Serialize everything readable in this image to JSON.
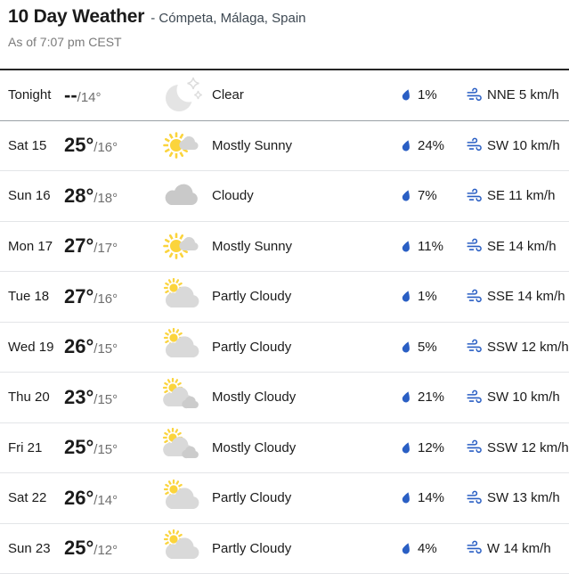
{
  "header": {
    "title": "10 Day Weather",
    "location": "- Cómpeta, Málaga, Spain",
    "as_of": "As of 7:07 pm CEST"
  },
  "colors": {
    "accent_blue": "#2a5fc4",
    "sun_yellow": "#fbd43c",
    "cloud_gray": "#d9d9d9",
    "moon_gray": "#e4e4e4",
    "text_dark": "#1b1b1b",
    "text_muted": "#7a7a7a"
  },
  "icons": {
    "precip": "raindrop-icon",
    "wind": "wind-gust-icon"
  },
  "table": {
    "rows": [
      {
        "day": "Tonight",
        "high": "--",
        "low": "/14°",
        "icon": "clear-night-icon",
        "condition": "Clear",
        "precip": "1%",
        "wind": "NNE 5 km/h"
      },
      {
        "day": "Sat 15",
        "high": "25°",
        "low": "/16°",
        "icon": "mostly-sunny-icon",
        "condition": "Mostly Sunny",
        "precip": "24%",
        "wind": "SW 10 km/h"
      },
      {
        "day": "Sun 16",
        "high": "28°",
        "low": "/18°",
        "icon": "cloudy-icon",
        "condition": "Cloudy",
        "precip": "7%",
        "wind": "SE 11 km/h"
      },
      {
        "day": "Mon 17",
        "high": "27°",
        "low": "/17°",
        "icon": "mostly-sunny-icon",
        "condition": "Mostly Sunny",
        "precip": "11%",
        "wind": "SE 14 km/h"
      },
      {
        "day": "Tue 18",
        "high": "27°",
        "low": "/16°",
        "icon": "partly-cloudy-icon",
        "condition": "Partly Cloudy",
        "precip": "1%",
        "wind": "SSE 14 km/h"
      },
      {
        "day": "Wed 19",
        "high": "26°",
        "low": "/15°",
        "icon": "partly-cloudy-icon",
        "condition": "Partly Cloudy",
        "precip": "5%",
        "wind": "SSW 12 km/h"
      },
      {
        "day": "Thu 20",
        "high": "23°",
        "low": "/15°",
        "icon": "mostly-cloudy-icon",
        "condition": "Mostly Cloudy",
        "precip": "21%",
        "wind": "SW 10 km/h"
      },
      {
        "day": "Fri 21",
        "high": "25°",
        "low": "/15°",
        "icon": "mostly-cloudy-icon",
        "condition": "Mostly Cloudy",
        "precip": "12%",
        "wind": "SSW 12 km/h"
      },
      {
        "day": "Sat 22",
        "high": "26°",
        "low": "/14°",
        "icon": "partly-cloudy-icon",
        "condition": "Partly Cloudy",
        "precip": "14%",
        "wind": "SW 13 km/h"
      },
      {
        "day": "Sun 23",
        "high": "25°",
        "low": "/12°",
        "icon": "partly-cloudy-icon",
        "condition": "Partly Cloudy",
        "precip": "4%",
        "wind": "W 14 km/h"
      }
    ]
  }
}
